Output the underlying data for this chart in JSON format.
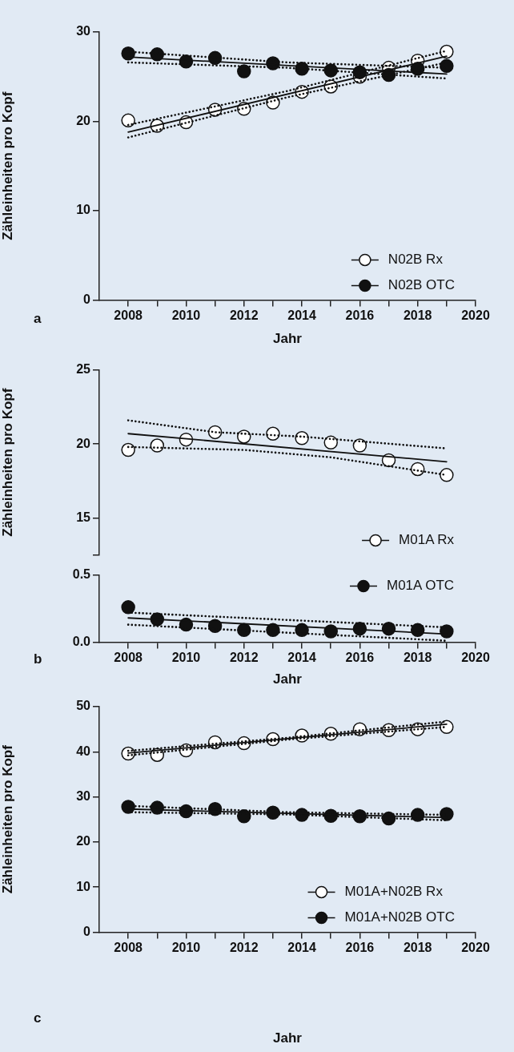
{
  "chart_data": [
    {
      "type": "scatter",
      "xlabel": "Jahr",
      "ylabel": "Zähleinheiten pro Kopf",
      "annotations": [
        "a"
      ],
      "x": [
        2008,
        2009,
        2010,
        2011,
        2012,
        2013,
        2014,
        2015,
        2016,
        2017,
        2018,
        2019
      ],
      "xlim": [
        2007,
        2020
      ],
      "xticks": [
        2008,
        {
          "value": 2009,
          "label": null
        },
        2010,
        {
          "value": 2011,
          "label": null
        },
        2012,
        {
          "value": 2013,
          "label": null
        },
        2014,
        {
          "value": 2015,
          "label": null
        },
        2016,
        {
          "value": 2017,
          "label": null
        },
        2018,
        {
          "value": 2019,
          "label": null
        },
        2020
      ],
      "ylim": [
        0,
        30
      ],
      "yticks": [
        0,
        10,
        20,
        30
      ],
      "grid": false,
      "legend": "bottom right",
      "marker": "circle",
      "series": [
        {
          "name": "N02B Rx",
          "color": "#ffffff",
          "values": [
            20.1,
            19.5,
            19.9,
            21.3,
            21.4,
            22.1,
            23.3,
            23.9,
            25.0,
            26.0,
            26.8,
            27.8
          ]
        },
        {
          "name": "N02B OTC",
          "color": "#111111",
          "values": [
            27.6,
            27.5,
            26.7,
            27.1,
            25.6,
            26.5,
            25.9,
            25.7,
            25.5,
            25.2,
            25.9,
            26.2
          ]
        },
        {
          "type": "line",
          "color": "#111111",
          "marker": "none",
          "line_style": "solid",
          "x": [
            2008,
            2019
          ],
          "values": [
            18.8,
            27.3
          ]
        },
        {
          "type": "line",
          "color": "#111111",
          "marker": "none",
          "line_style": "dotted",
          "x": [
            2008,
            2013.5,
            2019
          ],
          "values": [
            19.6,
            23.4,
            27.9
          ]
        },
        {
          "type": "line",
          "color": "#111111",
          "marker": "none",
          "line_style": "dotted",
          "x": [
            2008,
            2013.5,
            2019
          ],
          "values": [
            18.2,
            22.7,
            26.6
          ]
        },
        {
          "type": "line",
          "color": "#111111",
          "marker": "none",
          "line_style": "solid",
          "x": [
            2008,
            2019
          ],
          "values": [
            27.2,
            25.3
          ]
        },
        {
          "type": "line",
          "color": "#111111",
          "marker": "none",
          "line_style": "dotted",
          "x": [
            2008,
            2013.5,
            2019
          ],
          "values": [
            27.8,
            26.6,
            26.0
          ]
        },
        {
          "type": "line",
          "color": "#111111",
          "marker": "none",
          "line_style": "dotted",
          "x": [
            2008,
            2013.5,
            2019
          ],
          "values": [
            26.6,
            26.0,
            24.8
          ]
        }
      ]
    },
    {
      "type": "scatter",
      "ylabel": "Zähleinheiten pro Kopf",
      "x": [
        2008,
        2009,
        2010,
        2011,
        2012,
        2013,
        2014,
        2015,
        2016,
        2017,
        2018,
        2019
      ],
      "xlim": [
        2007,
        2020
      ],
      "tick_labels": "y",
      "ylim": [
        12.5,
        25
      ],
      "yticks": [
        {
          "value": 12.5,
          "label": null
        },
        15,
        20,
        25
      ],
      "grid": false,
      "legend": "bottom right",
      "marker": "circle",
      "series": [
        {
          "name": "M01A Rx",
          "color": "#ffffff",
          "values": [
            19.6,
            19.9,
            20.3,
            20.8,
            20.5,
            20.7,
            20.4,
            20.1,
            19.9,
            18.9,
            18.3,
            17.9
          ]
        },
        {
          "type": "line",
          "color": "#111111",
          "marker": "none",
          "line_style": "solid",
          "x": [
            2008,
            2019
          ],
          "values": [
            20.7,
            18.8
          ]
        },
        {
          "type": "line",
          "color": "#111111",
          "marker": "none",
          "line_style": "dotted",
          "x": [
            2008,
            2011,
            2014,
            2019
          ],
          "values": [
            21.6,
            20.8,
            20.5,
            19.7
          ]
        },
        {
          "type": "line",
          "color": "#111111",
          "marker": "none",
          "line_style": "dotted",
          "x": [
            2008,
            2012,
            2015,
            2019
          ],
          "values": [
            19.8,
            19.6,
            19.1,
            17.9
          ]
        }
      ]
    },
    {
      "type": "scatter",
      "xlabel": "Jahr",
      "annotations": [
        "b"
      ],
      "x": [
        2008,
        2009,
        2010,
        2011,
        2012,
        2013,
        2014,
        2015,
        2016,
        2017,
        2018,
        2019
      ],
      "xlim": [
        2007,
        2020
      ],
      "xticks": [
        2008,
        {
          "value": 2009,
          "label": null
        },
        2010,
        {
          "value": 2011,
          "label": null
        },
        2012,
        {
          "value": 2013,
          "label": null
        },
        2014,
        {
          "value": 2015,
          "label": null
        },
        2016,
        {
          "value": 2017,
          "label": null
        },
        2018,
        {
          "value": 2019,
          "label": null
        },
        2020
      ],
      "ylim": [
        0,
        0.5
      ],
      "yticks": [
        {
          "value": 0,
          "label": "0.0"
        },
        0.5
      ],
      "grid": false,
      "legend": "top right",
      "marker": "circle",
      "series": [
        {
          "name": "M01A OTC",
          "color": "#111111",
          "values": [
            0.26,
            0.17,
            0.13,
            0.12,
            0.09,
            0.09,
            0.09,
            0.08,
            0.1,
            0.1,
            0.09,
            0.08
          ]
        },
        {
          "type": "line",
          "color": "#111111",
          "marker": "none",
          "line_style": "solid",
          "x": [
            2008,
            2019
          ],
          "values": [
            0.18,
            0.06
          ]
        },
        {
          "type": "line",
          "color": "#111111",
          "marker": "none",
          "line_style": "dotted",
          "x": [
            2008,
            2019
          ],
          "values": [
            0.22,
            0.11
          ]
        },
        {
          "type": "line",
          "color": "#111111",
          "marker": "none",
          "line_style": "dotted",
          "x": [
            2008,
            2019
          ],
          "values": [
            0.13,
            0.01
          ]
        }
      ]
    },
    {
      "type": "scatter",
      "xlabel": "Jahr",
      "ylabel": "Zähleinheiten pro Kopf",
      "annotations": [
        "c"
      ],
      "x": [
        2008,
        2009,
        2010,
        2011,
        2012,
        2013,
        2014,
        2015,
        2016,
        2017,
        2018,
        2019
      ],
      "xlim": [
        2007,
        2020
      ],
      "xticks": [
        2008,
        {
          "value": 2009,
          "label": null
        },
        2010,
        {
          "value": 2011,
          "label": null
        },
        2012,
        {
          "value": 2013,
          "label": null
        },
        2014,
        {
          "value": 2015,
          "label": null
        },
        2016,
        {
          "value": 2017,
          "label": null
        },
        2018,
        {
          "value": 2019,
          "label": null
        },
        2020
      ],
      "ylim": [
        0,
        50
      ],
      "yticks": [
        0,
        10,
        20,
        30,
        40,
        50
      ],
      "grid": false,
      "legend": "bottom right",
      "marker": "circle",
      "series": [
        {
          "name": "M01A+N02B Rx",
          "color": "#ffffff",
          "values": [
            39.6,
            39.3,
            40.3,
            42.1,
            41.9,
            42.8,
            43.6,
            44.0,
            45.0,
            44.8,
            45.0,
            45.5
          ]
        },
        {
          "name": "M01A+N02B OTC",
          "color": "#111111",
          "values": [
            27.8,
            27.6,
            26.8,
            27.3,
            25.7,
            26.5,
            26.0,
            25.8,
            25.7,
            25.2,
            26.0,
            26.2
          ]
        },
        {
          "type": "line",
          "color": "#111111",
          "marker": "none",
          "line_style": "solid",
          "x": [
            2008,
            2019
          ],
          "values": [
            39.7,
            46.1
          ]
        },
        {
          "type": "line",
          "color": "#111111",
          "marker": "none",
          "line_style": "dotted",
          "x": [
            2008,
            2013.5,
            2019
          ],
          "values": [
            40.2,
            43.1,
            46.7
          ]
        },
        {
          "type": "line",
          "color": "#111111",
          "marker": "none",
          "line_style": "dotted",
          "x": [
            2008,
            2013.5,
            2019
          ],
          "values": [
            39.2,
            42.7,
            45.5
          ]
        },
        {
          "type": "line",
          "color": "#111111",
          "marker": "none",
          "line_style": "solid",
          "x": [
            2008,
            2019
          ],
          "values": [
            27.3,
            25.4
          ]
        },
        {
          "type": "line",
          "color": "#111111",
          "marker": "none",
          "line_style": "dotted",
          "x": [
            2008,
            2013.5,
            2019
          ],
          "values": [
            28.0,
            26.6,
            26.0
          ]
        },
        {
          "type": "line",
          "color": "#111111",
          "marker": "none",
          "line_style": "dotted",
          "x": [
            2008,
            2013.5,
            2019
          ],
          "values": [
            26.6,
            26.1,
            24.8
          ]
        }
      ]
    }
  ]
}
